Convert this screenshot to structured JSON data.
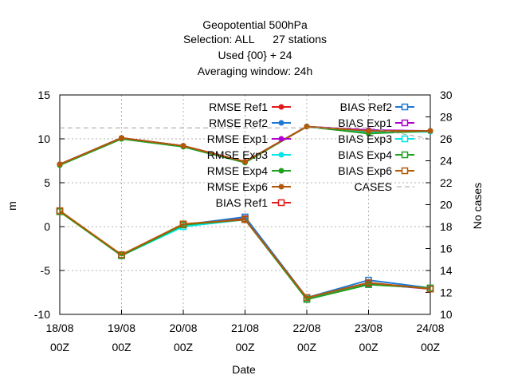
{
  "chart_data": {
    "type": "line",
    "title_lines": [
      "Geopotential 500hPa",
      "Selection: ALL      27 stations",
      "Used {00} + 24",
      "Averaging window: 24h"
    ],
    "xlabel": "Date",
    "ylabel": "m",
    "y2label": "No cases",
    "categories": [
      "18/08 00Z",
      "19/08 00Z",
      "20/08 00Z",
      "21/08 00Z",
      "22/08 00Z",
      "23/08 00Z",
      "24/08 00Z"
    ],
    "x_tick_labels": [
      [
        "18/08",
        "00Z"
      ],
      [
        "19/08",
        "00Z"
      ],
      [
        "20/08",
        "00Z"
      ],
      [
        "21/08",
        "00Z"
      ],
      [
        "22/08",
        "00Z"
      ],
      [
        "23/08",
        "00Z"
      ],
      [
        "24/08",
        "00Z"
      ]
    ],
    "ylim": [
      -10,
      15
    ],
    "y_ticks": [
      -10,
      -5,
      0,
      5,
      10,
      15
    ],
    "y2lim": [
      10,
      30
    ],
    "y2_ticks": [
      10,
      12,
      14,
      16,
      18,
      20,
      22,
      24,
      26,
      28,
      30
    ],
    "grid": true,
    "legend_position": "top-right",
    "series": [
      {
        "name": "RMSE Ref1",
        "color": "#e31a1c",
        "marker": "filled-circle",
        "values": [
          7.1,
          10.1,
          9.2,
          7.4,
          11.4,
          10.8,
          10.9
        ]
      },
      {
        "name": "RMSE Ref2",
        "color": "#1f78d1",
        "marker": "filled-circle",
        "values": [
          7.1,
          10.1,
          9.2,
          7.4,
          11.4,
          10.7,
          10.9
        ]
      },
      {
        "name": "RMSE Exp1",
        "color": "#b000d0",
        "marker": "filled-circle",
        "values": [
          7.1,
          10.1,
          9.2,
          7.4,
          11.4,
          11.0,
          10.9
        ]
      },
      {
        "name": "RMSE Exp3",
        "color": "#00e5e5",
        "marker": "filled-circle",
        "values": [
          7.0,
          10.0,
          9.1,
          7.3,
          11.4,
          10.8,
          10.8
        ]
      },
      {
        "name": "RMSE Exp4",
        "color": "#1fa01f",
        "marker": "filled-circle",
        "values": [
          7.0,
          10.0,
          9.1,
          7.3,
          11.4,
          10.6,
          10.9
        ]
      },
      {
        "name": "RMSE Exp6",
        "color": "#b35806",
        "marker": "filled-circle",
        "values": [
          7.1,
          10.1,
          9.2,
          7.4,
          11.4,
          10.9,
          10.9
        ]
      },
      {
        "name": "BIAS Ref1",
        "color": "#e31a1c",
        "marker": "open-square",
        "values": [
          1.8,
          -3.3,
          0.2,
          0.9,
          -8.1,
          -6.4,
          -7.1
        ]
      },
      {
        "name": "BIAS Ref2",
        "color": "#1f78d1",
        "marker": "open-square",
        "values": [
          1.8,
          -3.3,
          0.2,
          1.1,
          -8.1,
          -6.1,
          -7.0
        ]
      },
      {
        "name": "BIAS Exp1",
        "color": "#b000d0",
        "marker": "open-square",
        "values": [
          1.8,
          -3.3,
          0.2,
          0.8,
          -8.1,
          -6.5,
          -7.1
        ]
      },
      {
        "name": "BIAS Exp3",
        "color": "#00e5e5",
        "marker": "open-square",
        "values": [
          1.8,
          -3.3,
          0.0,
          0.8,
          -8.2,
          -6.6,
          -7.0
        ]
      },
      {
        "name": "BIAS Exp4",
        "color": "#1fa01f",
        "marker": "open-square",
        "values": [
          1.7,
          -3.3,
          0.2,
          0.8,
          -8.3,
          -6.6,
          -7.0
        ]
      },
      {
        "name": "BIAS Exp6",
        "color": "#b35806",
        "marker": "open-square",
        "values": [
          1.8,
          -3.2,
          0.3,
          0.8,
          -8.1,
          -6.4,
          -7.1
        ]
      },
      {
        "name": "CASES",
        "color": "#a0a0a0",
        "marker": "none",
        "dashed": true,
        "axis": "y2",
        "values": [
          27,
          27,
          27,
          27,
          27,
          27,
          26
        ]
      }
    ]
  }
}
